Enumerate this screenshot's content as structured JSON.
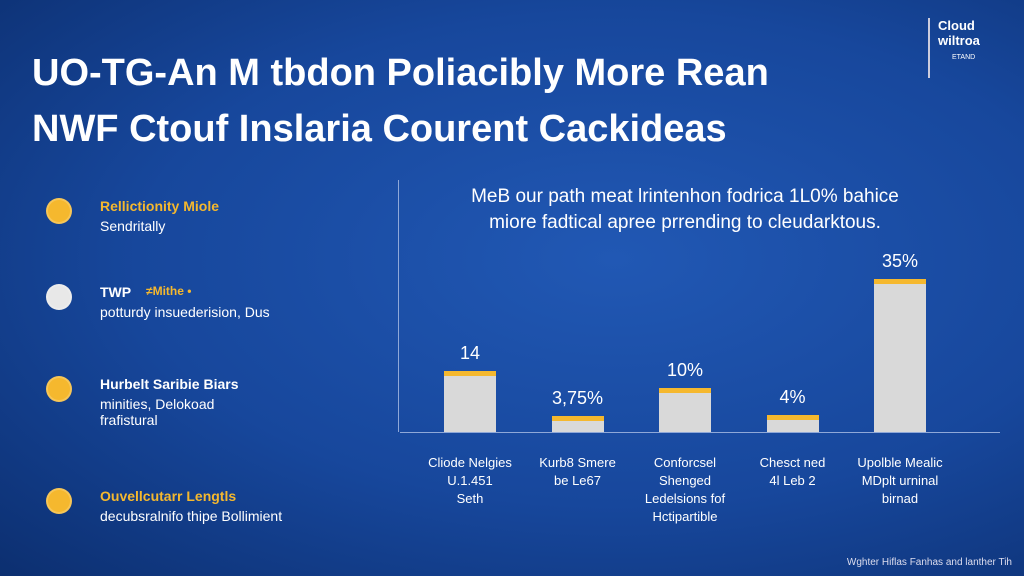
{
  "header": {
    "title_lines": [
      "UO-TG-An M tbdon Poliacibly More Rean",
      "NWF Ctouf Inslaria Courent Cackideas"
    ]
  },
  "logo": {
    "lines": [
      "Cloud",
      "wiltroa"
    ],
    "tag": "ETAND"
  },
  "sidebar": [
    {
      "title": "Rellictionity Miole",
      "text": "Sendritally"
    },
    {
      "title": "TWP",
      "tag": "≠Mithe •",
      "text": "potturdy insuederision, Dus"
    },
    {
      "title": "Hurbelt Saribie Biars",
      "text": "minities, Delokoad\nfrafistural"
    },
    {
      "title": "Ouvellcutarr Lengtls",
      "text": "decubsralnifo thipe Bollimient"
    }
  ],
  "chart_data": {
    "type": "bar",
    "subtitle": "MeB our path meat lrintenhon fodrica 1L0% bahice\nmiore fadtical apree prrending to cleudarktous.",
    "categories": [
      "Cliode Nelgies\nU.1.451\nSeth",
      "Kurb8 Smere\nbe Le67",
      "Conforcsel\nShenged\nLedelsions fof\nHctipartible",
      "Chesct ned\n4l Leb 2",
      "Upolble Mealic\nMDplt urninal\nbirnad"
    ],
    "values": [
      14,
      3.75,
      10,
      4,
      35
    ],
    "value_labels": [
      "14",
      "3,75%",
      "10%",
      "4%",
      "35%"
    ],
    "color": "#d9d9d9",
    "cap_color": "#f5b82e"
  },
  "footer": "Wghter Hiflas Fanhas and lanther Tih"
}
